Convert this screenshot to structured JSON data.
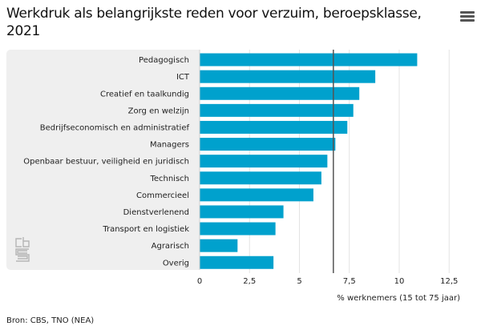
{
  "header": {
    "title": "Werkdruk als belangrijkste reden voor verzuim, beroepsklasse, 2021",
    "menu_icon": "hamburger-menu-icon"
  },
  "footer": {
    "source": "Bron: CBS, TNO (NEA)"
  },
  "logo": "cbs-logo-icon",
  "colors": {
    "bar": "#00a1cd",
    "reference_line": "#555555",
    "panel": "#efefef",
    "grid": "#e3e3e3"
  },
  "chart_data": {
    "type": "bar",
    "orientation": "horizontal",
    "title": "Werkdruk als belangrijkste reden voor verzuim, beroepsklasse, 2021",
    "xlabel": "% werknemers (15 tot 75 jaar)",
    "ylabel": "",
    "categories": [
      "Pedagogisch",
      "ICT",
      "Creatief en taalkundig",
      "Zorg en welzijn",
      "Bedrijfseconomisch en administratief",
      "Managers",
      "Openbaar bestuur, veiligheid en juridisch",
      "Technisch",
      "Commercieel",
      "Dienstverlenend",
      "Transport en logistiek",
      "Agrarisch",
      "Overig"
    ],
    "values": [
      10.9,
      8.8,
      8.0,
      7.7,
      7.4,
      6.8,
      6.4,
      6.1,
      5.7,
      4.2,
      3.8,
      1.9,
      3.7
    ],
    "reference_line": 6.7,
    "xlim": [
      0,
      13.5
    ],
    "xticks": [
      0,
      2.5,
      5,
      7.5,
      10,
      12.5
    ],
    "xtick_labels": [
      "0",
      "2,5",
      "5",
      "7,5",
      "10",
      "12,5"
    ],
    "grid": true,
    "legend": "none"
  }
}
